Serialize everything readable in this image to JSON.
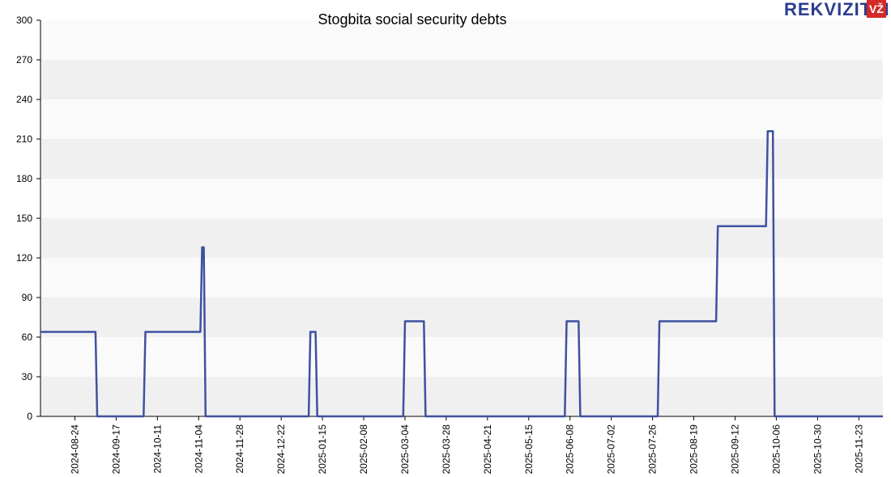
{
  "logo": {
    "text": "REKVIZITAI",
    "badge": "VŽ"
  },
  "chart_data": {
    "type": "line",
    "title": "Stogbita social security debts",
    "xlabel": "",
    "ylabel": "",
    "ylim": [
      0,
      300
    ],
    "yticks": [
      0,
      30,
      60,
      90,
      120,
      150,
      180,
      210,
      240,
      270,
      300
    ],
    "xlim": [
      "2024-08-04",
      "2025-12-07"
    ],
    "xticks": [
      "2024-08-24",
      "2024-09-17",
      "2024-10-11",
      "2024-11-04",
      "2024-11-28",
      "2024-12-22",
      "2025-01-15",
      "2025-02-08",
      "2025-03-04",
      "2025-03-28",
      "2025-04-21",
      "2025-05-15",
      "2025-06-08",
      "2025-07-02",
      "2025-07-26",
      "2025-08-19",
      "2025-09-12",
      "2025-10-06",
      "2025-10-30",
      "2025-11-23"
    ],
    "grid": "horizontal bands",
    "line_color": "#3f51a0",
    "series": [
      {
        "x": [
          "2024-08-04",
          "2024-09-05",
          "2024-09-06",
          "2024-10-03",
          "2024-10-04",
          "2024-11-05",
          "2024-11-06",
          "2024-11-07",
          "2024-11-08",
          "2025-01-07",
          "2025-01-08",
          "2025-01-11",
          "2025-01-12",
          "2025-03-03",
          "2025-03-04",
          "2025-03-15",
          "2025-03-16",
          "2025-06-05",
          "2025-06-06",
          "2025-06-13",
          "2025-06-14",
          "2025-07-29",
          "2025-07-30",
          "2025-09-01",
          "2025-09-02",
          "2025-09-30",
          "2025-10-01",
          "2025-10-04",
          "2025-10-05",
          "2025-12-07"
        ],
        "y": [
          64,
          64,
          0,
          0,
          64,
          64,
          128,
          128,
          0,
          0,
          64,
          64,
          0,
          0,
          72,
          72,
          0,
          0,
          72,
          72,
          0,
          0,
          72,
          72,
          144,
          144,
          216,
          216,
          0,
          0
        ]
      }
    ]
  }
}
